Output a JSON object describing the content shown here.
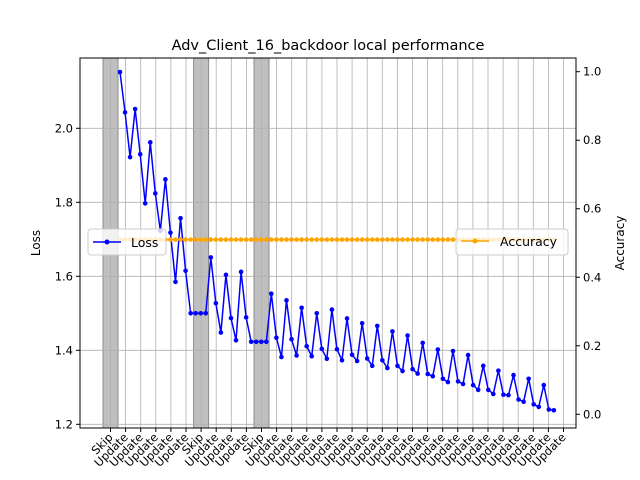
{
  "chart_data": {
    "type": "line",
    "title": "Adv_Client_16_backdoor local performance",
    "ylabel_left": "Loss",
    "ylabel_right": "Accuracy",
    "ylim_left": [
      1.19,
      2.19
    ],
    "ylim_right": [
      -0.04,
      1.04
    ],
    "yticks_left": [
      1.2,
      1.4,
      1.6,
      1.8,
      2.0
    ],
    "yticks_right": [
      0.0,
      0.2,
      0.4,
      0.6,
      0.8,
      1.0
    ],
    "grid": true,
    "rounds": [
      "Skip",
      "Update",
      "Update",
      "Update",
      "Update",
      "Update",
      "Skip",
      "Update",
      "Update",
      "Update",
      "Skip",
      "Update",
      "Update",
      "Update",
      "Update",
      "Update",
      "Update",
      "Update",
      "Update",
      "Update",
      "Update",
      "Update",
      "Update",
      "Update",
      "Update",
      "Update",
      "Update",
      "Update",
      "Update",
      "Update",
      "Update"
    ],
    "skip_rounds": [
      0,
      6,
      10
    ],
    "series": [
      {
        "name": "Loss",
        "axis": "left",
        "color": "#0000ff",
        "marker": "circle",
        "values": [
          2.152,
          2.043,
          1.922,
          2.052,
          1.93,
          1.797,
          1.962,
          1.824,
          1.723,
          1.862,
          1.718,
          1.585,
          1.757,
          1.615,
          1.5,
          1.5,
          1.5,
          1.5,
          1.651,
          1.527,
          1.448,
          1.604,
          1.487,
          1.427,
          1.612,
          1.489,
          1.423,
          1.423,
          1.423,
          1.423,
          1.553,
          1.434,
          1.382,
          1.535,
          1.43,
          1.386,
          1.515,
          1.411,
          1.384,
          1.5,
          1.404,
          1.377,
          1.51,
          1.403,
          1.373,
          1.486,
          1.388,
          1.371,
          1.473,
          1.378,
          1.358,
          1.466,
          1.373,
          1.352,
          1.451,
          1.358,
          1.344,
          1.44,
          1.349,
          1.337,
          1.42,
          1.336,
          1.33,
          1.402,
          1.323,
          1.314,
          1.398,
          1.316,
          1.309,
          1.387,
          1.306,
          1.293,
          1.358,
          1.293,
          1.282,
          1.345,
          1.28,
          1.279,
          1.333,
          1.267,
          1.261,
          1.323,
          1.254,
          1.247,
          1.306,
          1.24,
          1.238
        ]
      },
      {
        "name": "Accuracy",
        "axis": "right",
        "color": "#ffa500",
        "marker": "circle",
        "constant": 0.51,
        "count": 87
      }
    ],
    "legends": [
      {
        "label": "Loss",
        "placement": "center-left"
      },
      {
        "label": "Accuracy",
        "placement": "center-right"
      }
    ]
  }
}
